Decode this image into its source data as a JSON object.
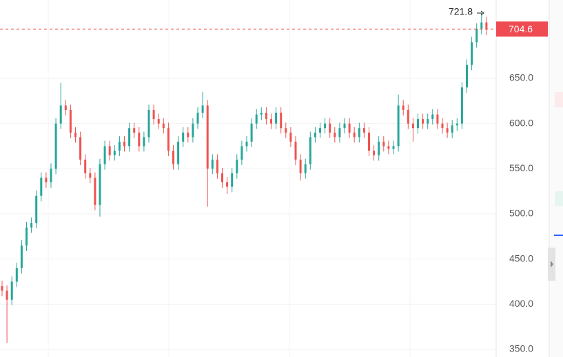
{
  "chart_data": {
    "type": "candlestick",
    "up_color": "#26a69a",
    "down_color": "#ef5350",
    "ylim": [
      341.6,
      736.8
    ],
    "yticks": [
      {
        "value": 350,
        "label": "350.0"
      },
      {
        "value": 400,
        "label": "400.0"
      },
      {
        "value": 450,
        "label": "450.0"
      },
      {
        "value": 500,
        "label": "500.0"
      },
      {
        "value": 550,
        "label": "550.0"
      },
      {
        "value": 600,
        "label": "600.0"
      },
      {
        "value": 650,
        "label": "650.0"
      }
    ],
    "grid": true,
    "open": [
      420,
      415,
      405,
      425,
      440,
      465,
      485,
      490,
      520,
      540,
      535,
      550,
      600,
      620,
      615,
      590,
      585,
      560,
      545,
      540,
      510,
      555,
      575,
      565,
      570,
      580,
      575,
      595,
      590,
      575,
      585,
      615,
      605,
      600,
      595,
      570,
      555,
      580,
      590,
      585,
      600,
      612,
      620,
      550,
      560,
      545,
      535,
      530,
      545,
      560,
      575,
      580,
      600,
      610,
      612,
      605,
      600,
      612,
      595,
      590,
      580,
      560,
      545,
      555,
      585,
      590,
      595,
      600,
      590,
      585,
      595,
      600,
      590,
      585,
      595,
      590,
      570,
      565,
      580,
      575,
      572,
      575,
      620,
      615,
      600,
      595,
      605,
      600,
      605,
      610,
      600,
      595,
      590,
      598,
      600,
      640,
      665,
      690,
      705,
      712
    ],
    "high": [
      426,
      421,
      431,
      446,
      471,
      491,
      496,
      526,
      546,
      546,
      556,
      606,
      645,
      626,
      621,
      596,
      591,
      566,
      551,
      546,
      561,
      581,
      581,
      576,
      586,
      586,
      601,
      601,
      596,
      591,
      621,
      621,
      611,
      606,
      601,
      576,
      586,
      596,
      596,
      606,
      618,
      635,
      626,
      566,
      566,
      551,
      541,
      551,
      566,
      581,
      586,
      606,
      616,
      618,
      618,
      611,
      618,
      618,
      601,
      596,
      586,
      566,
      561,
      591,
      596,
      601,
      606,
      606,
      596,
      601,
      606,
      606,
      596,
      601,
      601,
      596,
      576,
      586,
      586,
      581,
      581,
      632,
      626,
      621,
      606,
      611,
      611,
      611,
      616,
      616,
      606,
      601,
      604,
      606,
      646,
      671,
      696,
      711,
      721.8,
      718
    ],
    "low": [
      409,
      357,
      399,
      419,
      434,
      459,
      479,
      484,
      514,
      529,
      529,
      544,
      594,
      609,
      584,
      579,
      554,
      539,
      534,
      504,
      497,
      549,
      559,
      559,
      564,
      569,
      569,
      584,
      569,
      569,
      579,
      599,
      594,
      589,
      564,
      549,
      549,
      574,
      579,
      579,
      594,
      606,
      508,
      544,
      539,
      529,
      522,
      524,
      539,
      554,
      569,
      574,
      594,
      604,
      599,
      594,
      594,
      589,
      584,
      574,
      554,
      537,
      539,
      549,
      579,
      584,
      589,
      584,
      579,
      579,
      589,
      584,
      579,
      579,
      584,
      564,
      559,
      559,
      569,
      566,
      566,
      569,
      609,
      594,
      580,
      589,
      594,
      594,
      599,
      594,
      589,
      584,
      584,
      592,
      594,
      634,
      659,
      684,
      699,
      698
    ],
    "close": [
      415,
      405,
      425,
      440,
      465,
      485,
      490,
      520,
      540,
      535,
      550,
      600,
      620,
      615,
      590,
      585,
      560,
      545,
      540,
      510,
      555,
      575,
      565,
      570,
      580,
      575,
      595,
      590,
      575,
      585,
      615,
      605,
      600,
      595,
      570,
      555,
      580,
      590,
      585,
      600,
      612,
      620,
      550,
      560,
      545,
      535,
      530,
      545,
      560,
      575,
      580,
      600,
      610,
      612,
      605,
      600,
      612,
      595,
      590,
      580,
      560,
      545,
      555,
      585,
      590,
      595,
      600,
      590,
      585,
      595,
      600,
      590,
      585,
      595,
      590,
      570,
      565,
      580,
      575,
      572,
      575,
      620,
      615,
      600,
      595,
      605,
      600,
      605,
      610,
      600,
      595,
      590,
      598,
      600,
      640,
      665,
      690,
      705,
      712,
      704.6
    ]
  }
}
